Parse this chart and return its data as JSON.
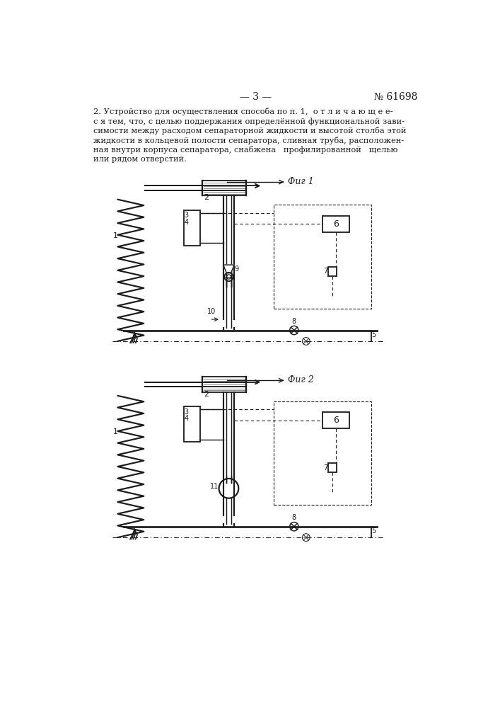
{
  "page_number": "— 3 —",
  "patent_number": "№ 61698",
  "bg_color": "#ffffff",
  "line_color": "#1a1a1a",
  "fig1_label": "Фиг 1",
  "fig2_label": "Фиг 2",
  "text_lines": [
    "2. Устройство для осуществления способа по п. 1,  о т л и ч а ю щ е е-",
    "с я тем, что, с целью поддержания определённой функциональной зави-",
    "симости между расходом сепараторной жидкости и высотой столба этой",
    "жидкости в кольцевой полости сепаратора, сливная труба, расположен-",
    "ная внутри корпуса сепаратора, снабжена   профилированной   щелью",
    "или рядом отверстий."
  ]
}
